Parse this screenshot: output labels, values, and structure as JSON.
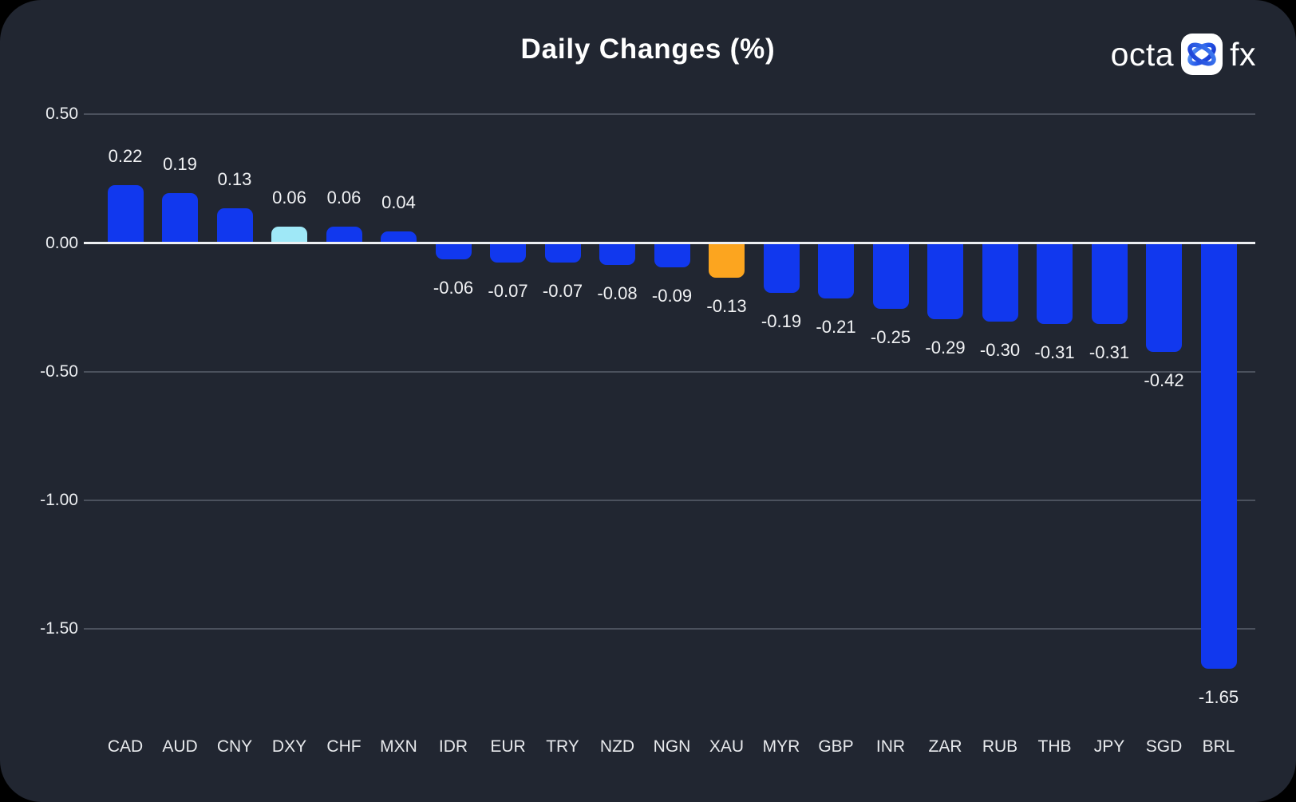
{
  "header": {
    "title": "Daily Changes (%)",
    "logo": {
      "text_left": "octa",
      "text_right": "fx",
      "icon": "octafx-swirl-icon"
    }
  },
  "colors": {
    "card_background": "#212631",
    "outer_background": "#000000",
    "gridline": "#4b515d",
    "zero_line": "#edeff2",
    "text": "#ffffff"
  },
  "chart_data": {
    "type": "bar",
    "title": "Daily Changes (%)",
    "categories": [
      "CAD",
      "AUD",
      "CNY",
      "DXY",
      "CHF",
      "MXN",
      "IDR",
      "EUR",
      "TRY",
      "NZD",
      "NGN",
      "XAU",
      "MYR",
      "GBP",
      "INR",
      "ZAR",
      "RUB",
      "THB",
      "JPY",
      "SGD",
      "BRL"
    ],
    "values": [
      0.22,
      0.19,
      0.13,
      0.06,
      0.06,
      0.04,
      -0.06,
      -0.07,
      -0.07,
      -0.08,
      -0.09,
      -0.13,
      -0.19,
      -0.21,
      -0.25,
      -0.29,
      -0.3,
      -0.31,
      -0.31,
      -0.42,
      -1.65
    ],
    "value_labels": [
      "0.22",
      "0.19",
      "0.13",
      "0.06",
      "0.06",
      "0.04",
      "-0.06",
      "-0.07",
      "-0.07",
      "-0.08",
      "-0.09",
      "-0.13",
      "-0.19",
      "-0.21",
      "-0.25",
      "-0.29",
      "-0.30",
      "-0.31",
      "-0.31",
      "-0.42",
      "-1.65"
    ],
    "bar_colors": {
      "default": "#1138ee",
      "DXY": "#9fe8f7",
      "XAU": "#fca51f"
    },
    "y_ticks": [
      0.5,
      0.0,
      -0.5,
      -1.0,
      -1.5
    ],
    "y_tick_labels": [
      "0.50",
      "0.00",
      "-0.50",
      "-1.00",
      "-1.50"
    ],
    "ylim": [
      0.55,
      -1.75
    ],
    "grid": true,
    "legend": false
  }
}
